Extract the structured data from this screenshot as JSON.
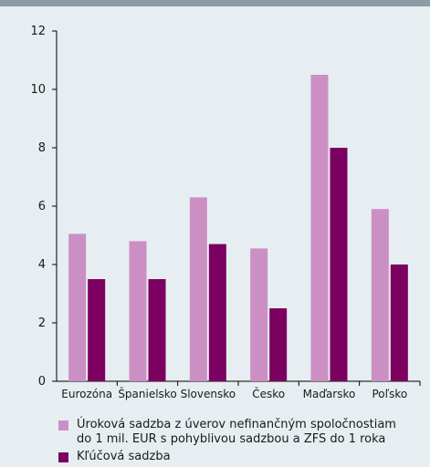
{
  "chart_data": {
    "type": "bar",
    "categories": [
      "Eurozóna",
      "Španielsko",
      "Slovensko",
      "Česko",
      "Maďarsko",
      "Poľsko"
    ],
    "series": [
      {
        "name": "Úroková sadzba z úverov nefinančným spoločnostiam do 1 mil. EUR s pohyblivou sadzbou a ZFS do 1 roka",
        "values": [
          5.05,
          4.8,
          6.3,
          4.55,
          10.5,
          5.9
        ],
        "color": "#cc8fc3"
      },
      {
        "name": "Kľúčová sadzba",
        "values": [
          3.5,
          3.5,
          4.7,
          2.5,
          8.0,
          4.0
        ],
        "color": "#7b0060"
      }
    ],
    "ylim": [
      0,
      12
    ],
    "yticks": [
      0,
      2,
      4,
      6,
      8,
      10,
      12
    ],
    "grid": false,
    "legend_position": "bottom"
  },
  "legend": {
    "line1": "Úroková sadzba z úverov nefinančným spoločnostiam",
    "line2": "do 1 mil. EUR s pohyblivou sadzbou a ZFS do 1 roka",
    "item2": "Kľúčová sadzba"
  }
}
